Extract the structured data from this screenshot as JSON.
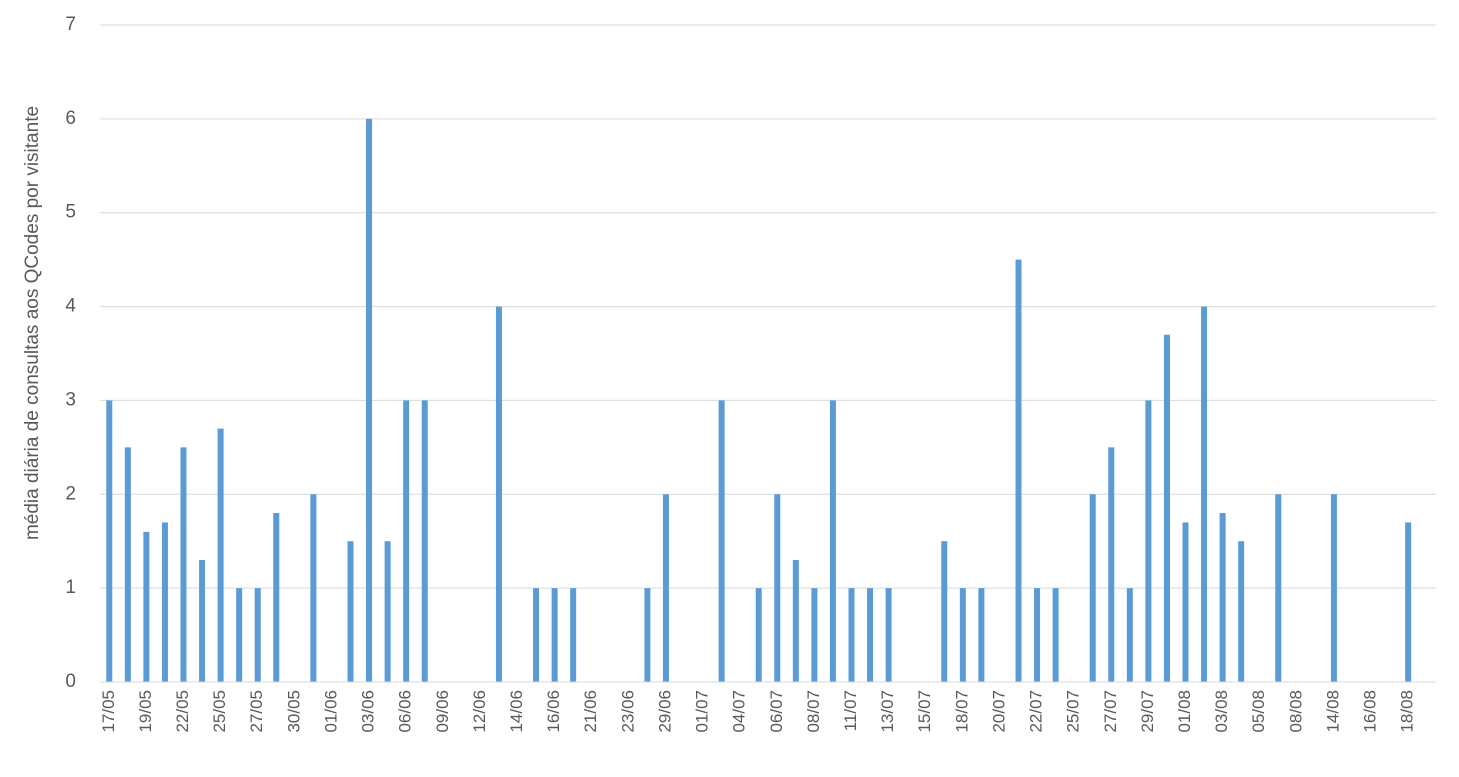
{
  "chart_data": {
    "type": "bar",
    "y_label": "média diária de consultas aos QCodes por visitante",
    "categories": [
      "17/05",
      null,
      "19/05",
      null,
      "22/05",
      null,
      "25/05",
      null,
      "27/05",
      null,
      "30/05",
      null,
      "01/06",
      null,
      "03/06",
      null,
      "06/06",
      null,
      "09/06",
      null,
      "12/06",
      null,
      "14/06",
      null,
      "16/06",
      null,
      "21/06",
      null,
      "23/06",
      null,
      "29/06",
      null,
      "01/07",
      null,
      "04/07",
      null,
      "06/07",
      null,
      "08/07",
      null,
      "11/07",
      null,
      "13/07",
      null,
      "15/07",
      null,
      "18/07",
      null,
      "20/07",
      null,
      "22/07",
      null,
      "25/07",
      null,
      "27/07",
      null,
      "29/07",
      null,
      "01/08",
      null,
      "03/08",
      null,
      "05/08",
      null,
      "08/08",
      null,
      "14/08",
      null,
      "16/08",
      null,
      "18/08",
      null
    ],
    "values": [
      3,
      2.5,
      1.6,
      1.7,
      2.5,
      1.3,
      2.7,
      1,
      1,
      1.8,
      0,
      2,
      0,
      1.5,
      6,
      1.5,
      3,
      3,
      0,
      0,
      0,
      4,
      0,
      1,
      1,
      1,
      0,
      0,
      0,
      1,
      2,
      0,
      0,
      3,
      0,
      1,
      2,
      1.3,
      1,
      3,
      1,
      1,
      1,
      0,
      0,
      1.5,
      1,
      1,
      0,
      4.5,
      1,
      1,
      0,
      2,
      2.5,
      1,
      3,
      3.7,
      1.7,
      4,
      1.8,
      1.5,
      0,
      2,
      0,
      0,
      2,
      0,
      0,
      0,
      1.7,
      0
    ],
    "color": "#5b9bd5",
    "ylim": [
      0,
      7
    ],
    "yticks": [
      0,
      1,
      2,
      3,
      4,
      5,
      6,
      7
    ],
    "grid": true
  }
}
